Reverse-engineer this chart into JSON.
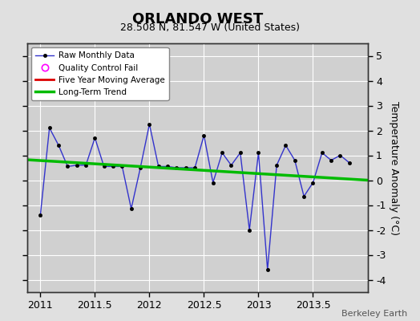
{
  "title": "ORLANDO WEST",
  "subtitle": "28.508 N, 81.547 W (United States)",
  "credit": "Berkeley Earth",
  "ylabel": "Temperature Anomaly (°C)",
  "xlim": [
    2010.88,
    2014.0
  ],
  "ylim": [
    -4.5,
    5.5
  ],
  "yticks": [
    -4,
    -3,
    -2,
    -1,
    0,
    1,
    2,
    3,
    4,
    5
  ],
  "xticks": [
    2011,
    2011.5,
    2012,
    2012.5,
    2013,
    2013.5
  ],
  "raw_x": [
    2011.0,
    2011.083,
    2011.167,
    2011.25,
    2011.333,
    2011.417,
    2011.5,
    2011.583,
    2011.667,
    2011.75,
    2011.833,
    2011.917,
    2012.0,
    2012.083,
    2012.167,
    2012.25,
    2012.333,
    2012.417,
    2012.5,
    2012.583,
    2012.667,
    2012.75,
    2012.833,
    2012.917,
    2013.0,
    2013.083,
    2013.167,
    2013.25,
    2013.333,
    2013.417,
    2013.5,
    2013.583,
    2013.667,
    2013.75,
    2013.833
  ],
  "raw_y": [
    -1.4,
    2.1,
    1.4,
    0.55,
    0.6,
    0.6,
    1.7,
    0.55,
    0.55,
    0.55,
    -1.15,
    0.5,
    2.25,
    0.55,
    0.55,
    0.5,
    0.5,
    0.5,
    1.8,
    -0.1,
    1.1,
    0.6,
    1.1,
    -2.0,
    1.1,
    -3.6,
    0.6,
    1.4,
    0.8,
    -0.65,
    -0.1,
    1.1,
    0.8,
    1.0,
    0.7
  ],
  "trend_x": [
    2010.88,
    2014.0
  ],
  "trend_y": [
    0.82,
    0.0
  ],
  "raw_line_color": "#3333cc",
  "raw_marker_color": "#000000",
  "trend_color": "#00bb00",
  "moving_avg_color": "#dd0000",
  "background_color": "#e0e0e0",
  "plot_bg_color": "#d0d0d0",
  "grid_color": "#ffffff",
  "title_fontsize": 13,
  "subtitle_fontsize": 9,
  "axis_fontsize": 9,
  "credit_fontsize": 8
}
